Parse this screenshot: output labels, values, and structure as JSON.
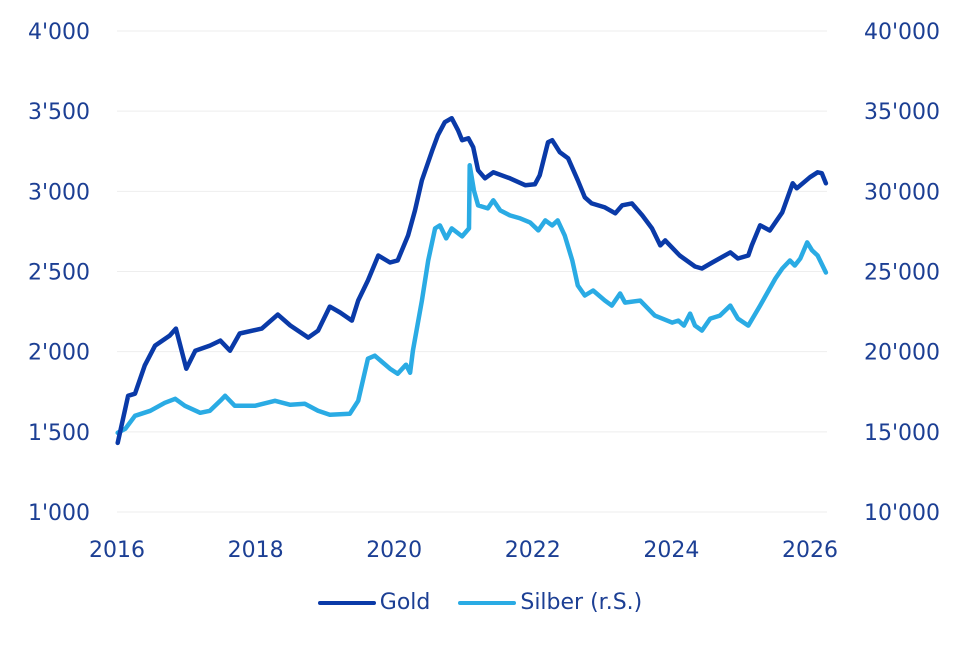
{
  "chart_data": {
    "type": "line",
    "title": "",
    "xlabel": "",
    "ylabel": "",
    "y2label": "",
    "xlim": [
      2016,
      2026.3
    ],
    "ylim": [
      1000,
      4000
    ],
    "y2lim": [
      10000,
      40000
    ],
    "grid": true,
    "legend_position": "bottom",
    "x_ticks": [
      2016,
      2018,
      2020,
      2022,
      2024,
      2026
    ],
    "x_tick_labels": [
      "2016",
      "2018",
      "2020",
      "2022",
      "2024",
      "2026"
    ],
    "y_ticks": [
      1000,
      1500,
      2000,
      2500,
      3000,
      3500,
      4000
    ],
    "y_tick_labels": [
      "1'000",
      "1'500",
      "2'000",
      "2'500",
      "3'000",
      "3'500",
      "4'000"
    ],
    "y2_ticks": [
      10000,
      15000,
      20000,
      25000,
      30000,
      35000,
      40000
    ],
    "y2_tick_labels": [
      "10'000",
      "15'000",
      "20'000",
      "25'000",
      "30'000",
      "35'000",
      "40'000"
    ],
    "series": [
      {
        "name": "Gold",
        "axis": "left",
        "color": "#0a3aa8",
        "x": [
          2016.01,
          2016.16,
          2016.26,
          2016.4,
          2016.55,
          2016.76,
          2016.85,
          2017.0,
          2017.13,
          2017.34,
          2017.49,
          2017.63,
          2017.77,
          2018.09,
          2018.32,
          2018.5,
          2018.76,
          2018.9,
          2019.07,
          2019.22,
          2019.39,
          2019.48,
          2019.62,
          2019.77,
          2019.94,
          2020.05,
          2020.2,
          2020.3,
          2020.4,
          2020.55,
          2020.63,
          2020.73,
          2020.83,
          2020.92,
          2020.98,
          2021.07,
          2021.14,
          2021.21,
          2021.31,
          2021.43,
          2021.67,
          2021.89,
          2022.03,
          2022.1,
          2022.22,
          2022.28,
          2022.39,
          2022.51,
          2022.65,
          2022.75,
          2022.85,
          2023.04,
          2023.19,
          2023.29,
          2023.43,
          2023.58,
          2023.72,
          2023.84,
          2023.91,
          2024.12,
          2024.34,
          2024.44,
          2024.59,
          2024.85,
          2024.96,
          2025.11,
          2025.16,
          2025.28,
          2025.42,
          2025.6,
          2025.75,
          2025.81,
          2026.0,
          2026.11,
          2026.17,
          2026.23
        ],
        "values": [
          1431,
          1725,
          1738,
          1913,
          2038,
          2100,
          2144,
          1894,
          2006,
          2038,
          2069,
          2006,
          2113,
          2144,
          2231,
          2163,
          2088,
          2131,
          2281,
          2244,
          2194,
          2319,
          2444,
          2600,
          2556,
          2569,
          2725,
          2881,
          3069,
          3256,
          3350,
          3431,
          3456,
          3381,
          3319,
          3331,
          3275,
          3131,
          3081,
          3119,
          3081,
          3038,
          3044,
          3100,
          3306,
          3319,
          3244,
          3206,
          3069,
          2963,
          2925,
          2900,
          2863,
          2913,
          2925,
          2850,
          2769,
          2663,
          2694,
          2600,
          2531,
          2519,
          2556,
          2619,
          2581,
          2600,
          2663,
          2788,
          2756,
          2869,
          3050,
          3019,
          3088,
          3119,
          3113,
          3050
        ]
      },
      {
        "name": "Silber (r.S.)",
        "axis": "right",
        "color": "#2aabe4",
        "x": [
          2016.01,
          2016.12,
          2016.26,
          2016.48,
          2016.69,
          2016.84,
          2016.98,
          2017.2,
          2017.34,
          2017.49,
          2017.56,
          2017.7,
          2017.99,
          2018.28,
          2018.5,
          2018.71,
          2018.9,
          2019.07,
          2019.36,
          2019.48,
          2019.62,
          2019.72,
          2019.94,
          2020.05,
          2020.17,
          2020.23,
          2020.27,
          2020.4,
          2020.49,
          2020.59,
          2020.66,
          2020.75,
          2020.83,
          2020.98,
          2021.08,
          2021.09,
          2021.15,
          2021.21,
          2021.35,
          2021.43,
          2021.53,
          2021.67,
          2021.82,
          2021.96,
          2022.08,
          2022.18,
          2022.28,
          2022.36,
          2022.46,
          2022.57,
          2022.65,
          2022.75,
          2022.87,
          2023.04,
          2023.14,
          2023.26,
          2023.33,
          2023.55,
          2023.76,
          2024.01,
          2024.1,
          2024.18,
          2024.27,
          2024.34,
          2024.44,
          2024.56,
          2024.7,
          2024.85,
          2024.96,
          2025.11,
          2025.28,
          2025.5,
          2025.6,
          2025.71,
          2025.78,
          2025.86,
          2025.96,
          2026.03,
          2026.11,
          2026.23
        ],
        "values": [
          14938,
          15188,
          16000,
          16313,
          16813,
          17063,
          16625,
          16188,
          16313,
          16938,
          17250,
          16625,
          16625,
          16938,
          16688,
          16750,
          16313,
          16063,
          16125,
          16938,
          19563,
          19750,
          18938,
          18625,
          19188,
          18688,
          20063,
          23188,
          25688,
          27688,
          27875,
          27063,
          27688,
          27188,
          27688,
          31625,
          30063,
          29125,
          28938,
          29438,
          28813,
          28500,
          28313,
          28063,
          27563,
          28188,
          27875,
          28188,
          27250,
          25688,
          24125,
          23500,
          23813,
          23188,
          22875,
          23625,
          23063,
          23188,
          22250,
          21813,
          21938,
          21625,
          22375,
          21625,
          21313,
          22063,
          22250,
          22875,
          22063,
          21625,
          22875,
          24563,
          25188,
          25688,
          25375,
          25813,
          26813,
          26313,
          26000,
          24938
        ]
      }
    ]
  },
  "legend": {
    "items": [
      {
        "label": "Gold",
        "color": "#0a3aa8"
      },
      {
        "label": "Silber (r.S.)",
        "color": "#2aabe4"
      }
    ]
  }
}
